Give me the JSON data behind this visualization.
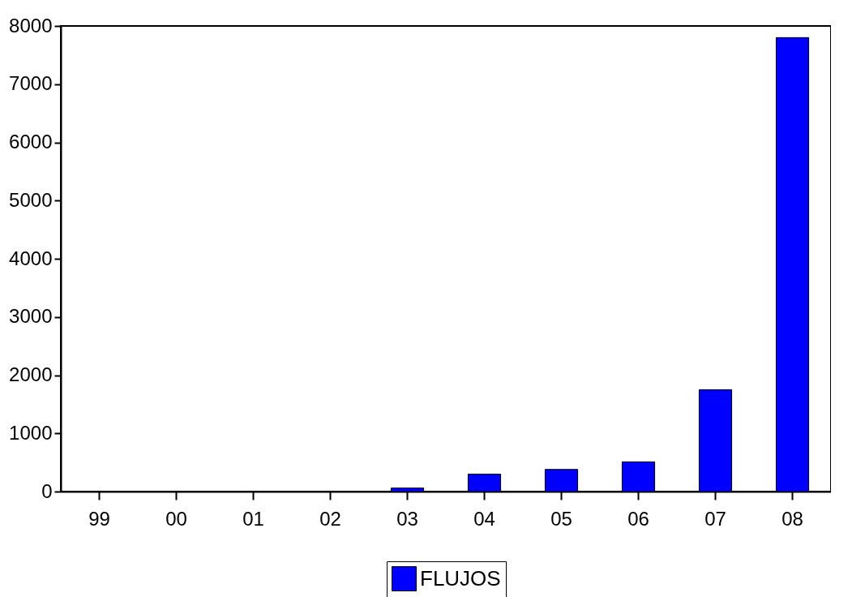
{
  "chart_data": {
    "type": "bar",
    "categories": [
      "99",
      "00",
      "01",
      "02",
      "03",
      "04",
      "05",
      "06",
      "07",
      "08"
    ],
    "series": [
      {
        "name": "FLUJOS",
        "color": "#0000ff",
        "values": [
          null,
          null,
          null,
          null,
          60,
          300,
          380,
          510,
          1750,
          7800
        ]
      }
    ],
    "ylim": [
      0,
      8000
    ],
    "yticks": [
      0,
      1000,
      2000,
      3000,
      4000,
      5000,
      6000,
      7000,
      8000
    ],
    "grid": false,
    "legend": "bottom"
  }
}
